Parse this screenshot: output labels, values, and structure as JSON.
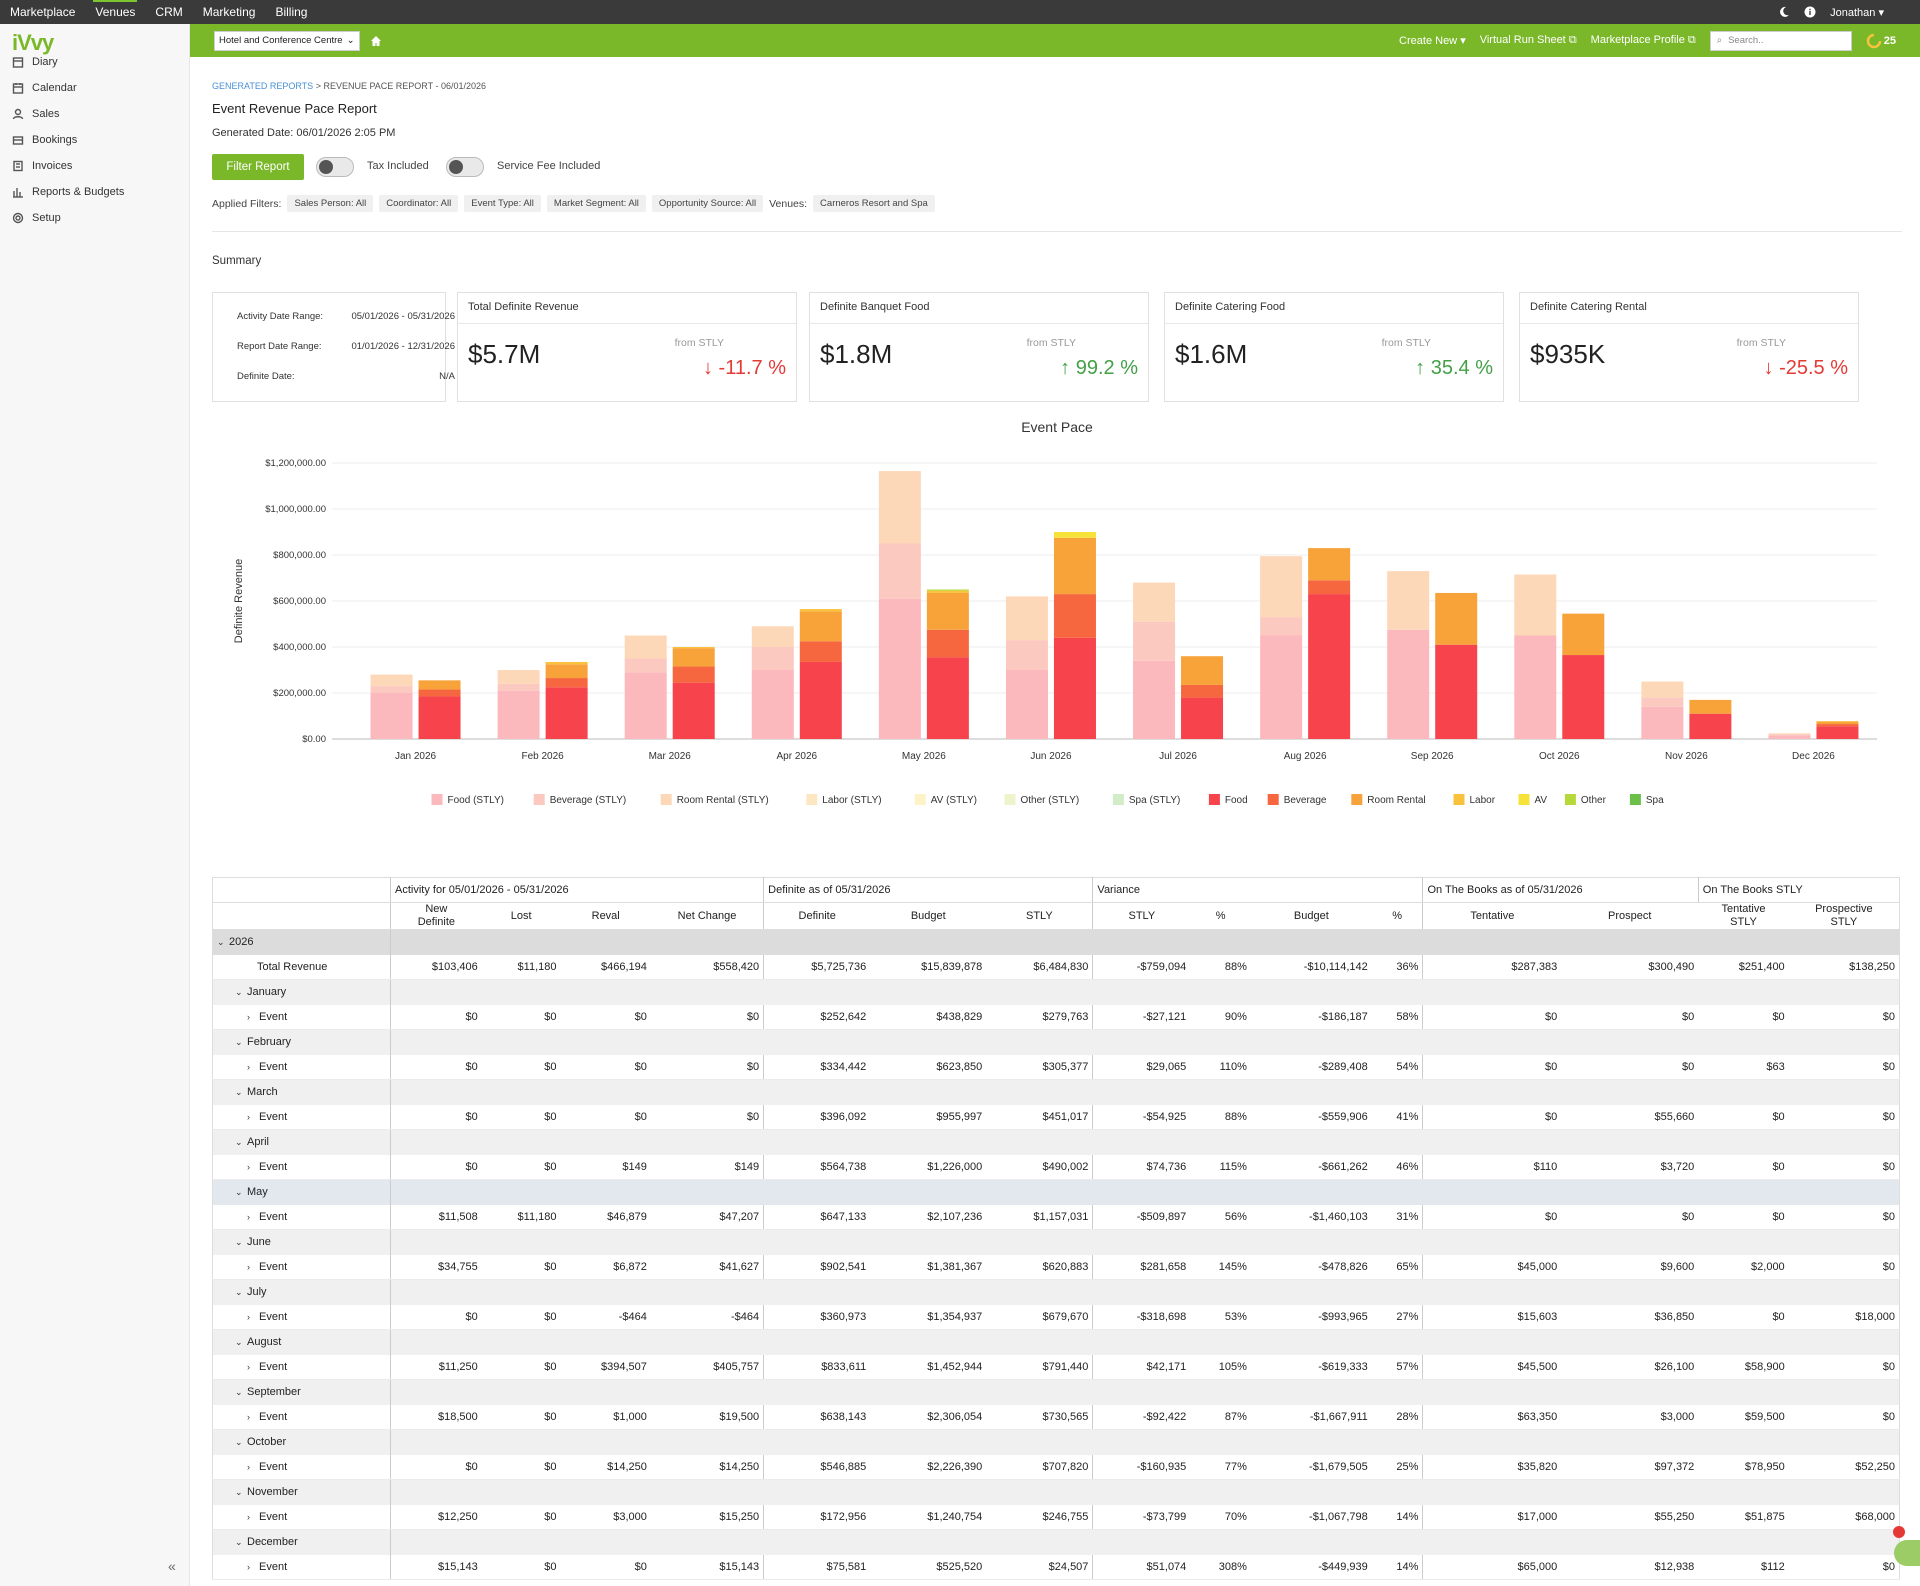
{
  "topnav": {
    "items": [
      "Marketplace",
      "Venues",
      "CRM",
      "Marketing",
      "Billing"
    ],
    "active": "Venues",
    "user": "Jonathan"
  },
  "greenbar": {
    "venue": "Hotel and Conference Centre",
    "create_new": "Create New",
    "virtual_run_sheet": "Virtual Run Sheet",
    "marketplace_profile": "Marketplace Profile",
    "search_placeholder": "Search..",
    "count": "25"
  },
  "logo": "iVvy",
  "sidebar": {
    "items": [
      {
        "label": "Diary",
        "icon": "diary-icon"
      },
      {
        "label": "Calendar",
        "icon": "calendar-icon"
      },
      {
        "label": "Sales",
        "icon": "sales-icon"
      },
      {
        "label": "Bookings",
        "icon": "bookings-icon"
      },
      {
        "label": "Invoices",
        "icon": "invoices-icon"
      },
      {
        "label": "Reports & Budgets",
        "icon": "reports-icon"
      },
      {
        "label": "Setup",
        "icon": "setup-icon"
      }
    ],
    "collapse": "«"
  },
  "breadcrumb": {
    "root": "GENERATED REPORTS",
    "sep": " > ",
    "current": "REVENUE PACE REPORT - 06/01/2026"
  },
  "title": "Event Revenue Pace Report",
  "generated": "Generated Date: 06/01/2026 2:05 PM",
  "filter_button": "Filter Report",
  "toggles": {
    "tax": "Tax Included",
    "service": "Service Fee Included"
  },
  "applied_filters": {
    "label": "Applied Filters:",
    "chips": [
      "Sales Person: All",
      "Coordinator: All",
      "Event Type: All",
      "Market Segment: All",
      "Opportunity Source: All"
    ],
    "venues_label": "Venues:",
    "venue_chip": "Carneros Resort and Spa"
  },
  "summary": {
    "heading": "Summary",
    "dates": [
      {
        "label": "Activity Date Range:",
        "value": "05/01/2026 - 05/31/2026"
      },
      {
        "label": "Report Date Range:",
        "value": "01/01/2026 - 12/31/2026"
      },
      {
        "label": "Definite Date:",
        "value": "N/A"
      }
    ],
    "cards": [
      {
        "title": "Total Definite Revenue",
        "value": "$5.7M",
        "from": "from STLY",
        "change": "-11.7 %",
        "dir": "down"
      },
      {
        "title": "Definite Banquet Food",
        "value": "$1.8M",
        "from": "from STLY",
        "change": "99.2 %",
        "dir": "up"
      },
      {
        "title": "Definite Catering Food",
        "value": "$1.6M",
        "from": "from STLY",
        "change": "35.4 %",
        "dir": "up"
      },
      {
        "title": "Definite Catering Rental",
        "value": "$935K",
        "from": "from STLY",
        "change": "-25.5 %",
        "dir": "down"
      }
    ]
  },
  "chart_data": {
    "type": "bar",
    "title": "Event Pace",
    "ylabel": "Definite Revenue",
    "ylim": [
      0,
      1200000
    ],
    "yticks": [
      "$0.00",
      "$200,000.00",
      "$400,000.00",
      "$600,000.00",
      "$800,000.00",
      "$1,000,000.00",
      "$1,200,000.00"
    ],
    "categories": [
      "Jan 2026",
      "Feb 2026",
      "Mar 2026",
      "Apr 2026",
      "May 2026",
      "Jun 2026",
      "Jul 2026",
      "Aug 2026",
      "Sep 2026",
      "Oct 2026",
      "Nov 2026",
      "Dec 2026"
    ],
    "stly_series": [
      {
        "name": "Food (STLY)",
        "color": "#fbb8bd",
        "values": [
          200000,
          210000,
          290000,
          300000,
          610000,
          300000,
          340000,
          450000,
          475000,
          450000,
          140000,
          15000
        ]
      },
      {
        "name": "Beverage (STLY)",
        "color": "#fcc9c0",
        "values": [
          30000,
          30000,
          60000,
          100000,
          240000,
          130000,
          170000,
          80000,
          0,
          0,
          40000,
          5000
        ]
      },
      {
        "name": "Room Rental (STLY)",
        "color": "#fdd8b8",
        "values": [
          50000,
          60000,
          100000,
          90000,
          315000,
          190000,
          170000,
          265000,
          255000,
          265000,
          70000,
          5000
        ]
      },
      {
        "name": "Labor (STLY)",
        "color": "#fde7c3",
        "values": [
          0,
          0,
          0,
          0,
          0,
          0,
          0,
          0,
          0,
          0,
          0,
          0
        ]
      },
      {
        "name": "AV (STLY)",
        "color": "#fdf3c8",
        "values": [
          0,
          0,
          0,
          0,
          0,
          0,
          0,
          0,
          0,
          0,
          0,
          0
        ]
      },
      {
        "name": "Other (STLY)",
        "color": "#eef3cc",
        "values": [
          0,
          0,
          0,
          0,
          0,
          0,
          0,
          0,
          0,
          0,
          0,
          0
        ]
      },
      {
        "name": "Spa (STLY)",
        "color": "#d3ecc8",
        "values": [
          0,
          0,
          0,
          0,
          0,
          0,
          0,
          0,
          0,
          0,
          0,
          0
        ]
      }
    ],
    "def_series": [
      {
        "name": "Food",
        "color": "#f6434c",
        "values": [
          185000,
          225000,
          245000,
          335000,
          355000,
          440000,
          180000,
          630000,
          410000,
          365000,
          110000,
          55000
        ]
      },
      {
        "name": "Beverage",
        "color": "#f6663f",
        "values": [
          30000,
          40000,
          70000,
          90000,
          120000,
          190000,
          55000,
          60000,
          0,
          0,
          0,
          10000
        ]
      },
      {
        "name": "Room Rental",
        "color": "#f8a33a",
        "values": [
          40000,
          60000,
          80000,
          130000,
          160000,
          245000,
          125000,
          140000,
          225000,
          180000,
          60000,
          10000
        ]
      },
      {
        "name": "Labor",
        "color": "#f9c23c",
        "values": [
          0,
          10000,
          5000,
          10000,
          10000,
          0,
          0,
          0,
          0,
          0,
          0,
          3000
        ]
      },
      {
        "name": "AV",
        "color": "#f7e23a",
        "values": [
          0,
          0,
          0,
          0,
          0,
          25000,
          0,
          0,
          0,
          0,
          0,
          0
        ]
      },
      {
        "name": "Other",
        "color": "#b6d83a",
        "values": [
          0,
          0,
          0,
          0,
          5000,
          0,
          0,
          0,
          0,
          0,
          0,
          0
        ]
      },
      {
        "name": "Spa",
        "color": "#6cc04a",
        "values": [
          0,
          0,
          0,
          0,
          0,
          0,
          0,
          0,
          0,
          0,
          0,
          0
        ]
      }
    ]
  },
  "table": {
    "groups": [
      "Activity for 05/01/2026 - 05/31/2026",
      "Definite as of 05/31/2026",
      "Variance",
      "On The Books as of 05/31/2026",
      "On The Books STLY"
    ],
    "columns": [
      "New\nDefinite",
      "Lost",
      "Reval",
      "Net Change",
      "Definite",
      "Budget",
      "STLY",
      "STLY",
      "%",
      "Budget",
      "%",
      "Tentative",
      "Prospect",
      "Tentative\nSTLY",
      "Prospective\nSTLY"
    ],
    "year": "2026",
    "total": {
      "label": "Total Revenue",
      "values": [
        "$103,406",
        "$11,180",
        "$466,194",
        "$558,420",
        "$5,725,736",
        "$15,839,878",
        "$6,484,830",
        "-$759,094",
        "88%",
        "-$10,114,142",
        "36%",
        "$287,383",
        "$300,490",
        "$251,400",
        "$138,250"
      ]
    },
    "months": [
      {
        "name": "January",
        "event": "Event",
        "values": [
          "$0",
          "$0",
          "$0",
          "$0",
          "$252,642",
          "$438,829",
          "$279,763",
          "-$27,121",
          "90%",
          "-$186,187",
          "58%",
          "$0",
          "$0",
          "$0",
          "$0"
        ]
      },
      {
        "name": "February",
        "event": "Event",
        "values": [
          "$0",
          "$0",
          "$0",
          "$0",
          "$334,442",
          "$623,850",
          "$305,377",
          "$29,065",
          "110%",
          "-$289,408",
          "54%",
          "$0",
          "$0",
          "$63",
          "$0"
        ]
      },
      {
        "name": "March",
        "event": "Event",
        "values": [
          "$0",
          "$0",
          "$0",
          "$0",
          "$396,092",
          "$955,997",
          "$451,017",
          "-$54,925",
          "88%",
          "-$559,906",
          "41%",
          "$0",
          "$55,660",
          "$0",
          "$0"
        ]
      },
      {
        "name": "April",
        "event": "Event",
        "values": [
          "$0",
          "$0",
          "$149",
          "$149",
          "$564,738",
          "$1,226,000",
          "$490,002",
          "$74,736",
          "115%",
          "-$661,262",
          "46%",
          "$110",
          "$3,720",
          "$0",
          "$0"
        ]
      },
      {
        "name": "May",
        "event": "Event",
        "values": [
          "$11,508",
          "$11,180",
          "$46,879",
          "$47,207",
          "$647,133",
          "$2,107,236",
          "$1,157,031",
          "-$509,897",
          "56%",
          "-$1,460,103",
          "31%",
          "$0",
          "$0",
          "$0",
          "$0"
        ]
      },
      {
        "name": "June",
        "event": "Event",
        "values": [
          "$34,755",
          "$0",
          "$6,872",
          "$41,627",
          "$902,541",
          "$1,381,367",
          "$620,883",
          "$281,658",
          "145%",
          "-$478,826",
          "65%",
          "$45,000",
          "$9,600",
          "$2,000",
          "$0"
        ]
      },
      {
        "name": "July",
        "event": "Event",
        "values": [
          "$0",
          "$0",
          "-$464",
          "-$464",
          "$360,973",
          "$1,354,937",
          "$679,670",
          "-$318,698",
          "53%",
          "-$993,965",
          "27%",
          "$15,603",
          "$36,850",
          "$0",
          "$18,000"
        ]
      },
      {
        "name": "August",
        "event": "Event",
        "values": [
          "$11,250",
          "$0",
          "$394,507",
          "$405,757",
          "$833,611",
          "$1,452,944",
          "$791,440",
          "$42,171",
          "105%",
          "-$619,333",
          "57%",
          "$45,500",
          "$26,100",
          "$58,900",
          "$0"
        ]
      },
      {
        "name": "September",
        "event": "Event",
        "values": [
          "$18,500",
          "$0",
          "$1,000",
          "$19,500",
          "$638,143",
          "$2,306,054",
          "$730,565",
          "-$92,422",
          "87%",
          "-$1,667,911",
          "28%",
          "$63,350",
          "$3,000",
          "$59,500",
          "$0"
        ]
      },
      {
        "name": "October",
        "event": "Event",
        "values": [
          "$0",
          "$0",
          "$14,250",
          "$14,250",
          "$546,885",
          "$2,226,390",
          "$707,820",
          "-$160,935",
          "77%",
          "-$1,679,505",
          "25%",
          "$35,820",
          "$97,372",
          "$78,950",
          "$52,250"
        ]
      },
      {
        "name": "November",
        "event": "Event",
        "values": [
          "$12,250",
          "$0",
          "$3,000",
          "$15,250",
          "$172,956",
          "$1,240,754",
          "$246,755",
          "-$73,799",
          "70%",
          "-$1,067,798",
          "14%",
          "$17,000",
          "$55,250",
          "$51,875",
          "$68,000"
        ]
      },
      {
        "name": "December",
        "event": "Event",
        "values": [
          "$15,143",
          "$0",
          "$0",
          "$15,143",
          "$75,581",
          "$525,520",
          "$24,507",
          "$51,074",
          "308%",
          "-$449,939",
          "14%",
          "$65,000",
          "$12,938",
          "$112",
          "$0"
        ]
      }
    ]
  }
}
